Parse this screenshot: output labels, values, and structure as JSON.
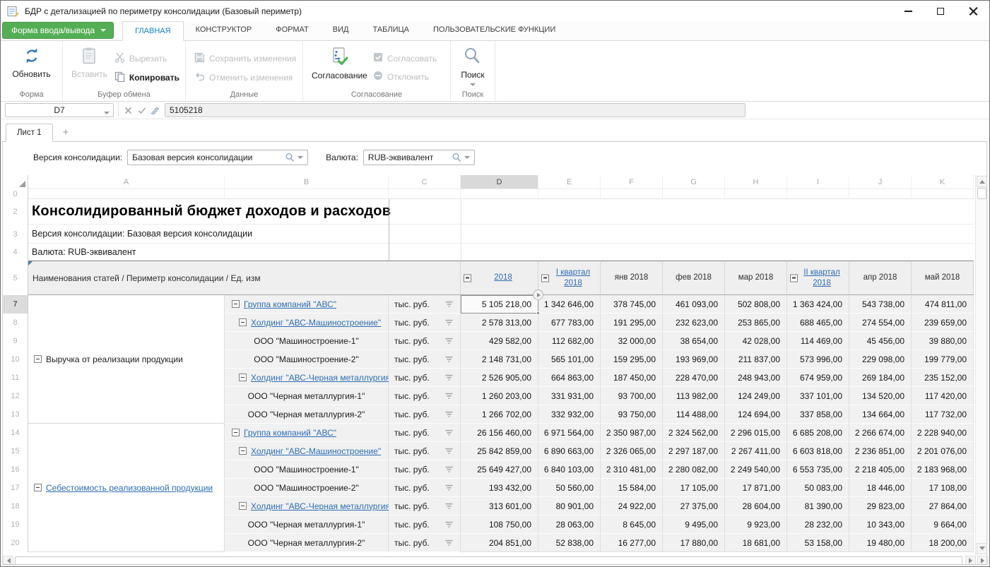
{
  "window": {
    "title": "БДР с детализацией по периметру консолидации (Базовый периметр)"
  },
  "colors": {
    "accent_green": "#54ae54",
    "active_tab_blue": "#1080c8",
    "link_blue": "#2e6db4",
    "selection_gray": "#8f8f8f",
    "cell_bg": "#f1f1f1"
  },
  "menu": {
    "form_button": "Форма ввода/вывода",
    "tabs": [
      {
        "label": "ГЛАВНАЯ",
        "active": true
      },
      {
        "label": "КОНСТРУКТОР",
        "active": false
      },
      {
        "label": "ФОРМАТ",
        "active": false
      },
      {
        "label": "ВИД",
        "active": false
      },
      {
        "label": "ТАБЛИЦА",
        "active": false
      },
      {
        "label": "ПОЛЬЗОВАТЕЛЬСКИЕ ФУНКЦИИ",
        "active": false
      }
    ]
  },
  "ribbon": {
    "groups": [
      {
        "label": "Форма",
        "buttons": [
          {
            "label": "Обновить",
            "enabled": true
          }
        ]
      },
      {
        "label": "Буфер обмена",
        "buttons": [
          {
            "label": "Вставить",
            "enabled": false
          },
          {
            "label": "Вырезать",
            "enabled": false
          },
          {
            "label": "Копировать",
            "enabled": true
          }
        ]
      },
      {
        "label": "Данные",
        "buttons": [
          {
            "label": "Сохранить изменения",
            "enabled": false
          },
          {
            "label": "Отменить изменения",
            "enabled": false
          }
        ]
      },
      {
        "label": "Согласование",
        "buttons": [
          {
            "label": "Согласование",
            "enabled": true
          },
          {
            "label": "Согласовать",
            "enabled": false
          },
          {
            "label": "Отклонить",
            "enabled": false
          }
        ]
      },
      {
        "label": "Поиск",
        "buttons": [
          {
            "label": "Поиск",
            "enabled": true
          }
        ]
      }
    ]
  },
  "formula_bar": {
    "cell_ref": "D7",
    "value": "5105218"
  },
  "sheet_bar": {
    "tab": "Лист 1",
    "add": "+"
  },
  "filters": {
    "consolidation_label": "Версия консолидации:",
    "consolidation_value": "Базовая версия консолидации",
    "currency_label": "Валюта:",
    "currency_value": "RUB-эквивалент"
  },
  "grid": {
    "column_letters": [
      "A",
      "B",
      "C",
      "D",
      "E",
      "F",
      "G",
      "H",
      "I",
      "J",
      "K"
    ],
    "selected_column": "D",
    "selected_row": "7",
    "pre_rows": [
      {
        "num": "0",
        "text": "",
        "style": "empty"
      },
      {
        "num": "2",
        "text": "Консолидированный бюджет доходов и расходов",
        "style": "title"
      },
      {
        "num": "3",
        "text": "Версия консолидации: Базовая версия консолидации",
        "style": "meta"
      },
      {
        "num": "4",
        "text": "Валюта: RUB-эквивалент",
        "style": "meta"
      }
    ],
    "header_row": {
      "num": "5",
      "stub": "Наименования статей / Периметр консолидации / Ед. изм",
      "columns": [
        {
          "label": "2018",
          "link": true,
          "collapsible": true
        },
        {
          "label": "I квартал 2018",
          "link": true,
          "collapsible": true
        },
        {
          "label": "янв 2018",
          "link": false,
          "collapsible": false
        },
        {
          "label": "фев 2018",
          "link": false,
          "collapsible": false
        },
        {
          "label": "мар 2018",
          "link": false,
          "collapsible": false
        },
        {
          "label": "II квартал 2018",
          "link": true,
          "collapsible": true
        },
        {
          "label": "апр 2018",
          "link": false,
          "collapsible": false
        },
        {
          "label": "май 2018",
          "link": false,
          "collapsible": false
        }
      ]
    },
    "sections": [
      {
        "label": "Выручка от реализации продукции",
        "link": false,
        "rows": [
          {
            "num": "7",
            "entity": "Группа компаний \"АВС\"",
            "level": 0,
            "link": true,
            "collapsible": true,
            "unit": "тыс. руб.",
            "values": [
              "5 105 218,00",
              "1 342 646,00",
              "378 745,00",
              "461 093,00",
              "502 808,00",
              "1 363 424,00",
              "543 738,00",
              "474 811,00"
            ]
          },
          {
            "num": "8",
            "entity": "Холдинг \"АВС-Машиностроение\"",
            "level": 1,
            "link": true,
            "collapsible": true,
            "unit": "тыс. руб.",
            "values": [
              "2 578 313,00",
              "677 783,00",
              "191 295,00",
              "232 623,00",
              "253 865,00",
              "688 465,00",
              "274 554,00",
              "239 659,00"
            ]
          },
          {
            "num": "9",
            "entity": "ООО \"Машиностроение-1\"",
            "level": 2,
            "link": false,
            "collapsible": false,
            "unit": "тыс. руб.",
            "values": [
              "429 582,00",
              "112 682,00",
              "32 000,00",
              "38 654,00",
              "42 028,00",
              "114 469,00",
              "45 456,00",
              "39 880,00"
            ]
          },
          {
            "num": "10",
            "entity": "ООО \"Машиностроение-2\"",
            "level": 2,
            "link": false,
            "collapsible": false,
            "unit": "тыс. руб.",
            "values": [
              "2 148 731,00",
              "565 101,00",
              "159 295,00",
              "193 969,00",
              "211 837,00",
              "573 996,00",
              "229 098,00",
              "199 779,00"
            ]
          },
          {
            "num": "11",
            "entity": "Холдинг \"АВС-Черная металлургия\"",
            "level": 1,
            "link": true,
            "collapsible": true,
            "unit": "тыс. руб.",
            "values": [
              "2 526 905,00",
              "664 863,00",
              "187 450,00",
              "228 470,00",
              "248 943,00",
              "674 959,00",
              "269 184,00",
              "235 152,00"
            ]
          },
          {
            "num": "12",
            "entity": "ООО \"Черная металлургия-1\"",
            "level": 2,
            "link": false,
            "collapsible": false,
            "unit": "тыс. руб.",
            "values": [
              "1 260 203,00",
              "331 931,00",
              "93 700,00",
              "113 982,00",
              "124 249,00",
              "337 101,00",
              "134 520,00",
              "117 420,00"
            ]
          },
          {
            "num": "13",
            "entity": "ООО \"Черная металлургия-2\"",
            "level": 2,
            "link": false,
            "collapsible": false,
            "unit": "тыс. руб.",
            "values": [
              "1 266 702,00",
              "332 932,00",
              "93 750,00",
              "114 488,00",
              "124 694,00",
              "337 858,00",
              "134 664,00",
              "117 732,00"
            ]
          }
        ]
      },
      {
        "label": "Себестоимость реализованной продукции",
        "link": true,
        "rows": [
          {
            "num": "14",
            "entity": "Группа компаний \"АВС\"",
            "level": 0,
            "link": true,
            "collapsible": true,
            "unit": "тыс. руб.",
            "values": [
              "26 156 460,00",
              "6 971 564,00",
              "2 350 987,00",
              "2 324 562,00",
              "2 296 015,00",
              "6 685 208,00",
              "2 266 674,00",
              "2 228 940,00"
            ]
          },
          {
            "num": "15",
            "entity": "Холдинг \"АВС-Машиностроение\"",
            "level": 1,
            "link": true,
            "collapsible": true,
            "unit": "тыс. руб.",
            "values": [
              "25 842 859,00",
              "6 890 663,00",
              "2 326 065,00",
              "2 297 187,00",
              "2 267 411,00",
              "6 603 818,00",
              "2 236 851,00",
              "2 201 076,00"
            ]
          },
          {
            "num": "16",
            "entity": "ООО \"Машиностроение-1\"",
            "level": 2,
            "link": false,
            "collapsible": false,
            "unit": "тыс. руб.",
            "values": [
              "25 649 427,00",
              "6 840 103,00",
              "2 310 481,00",
              "2 280 082,00",
              "2 249 540,00",
              "6 553 735,00",
              "2 218 405,00",
              "2 183 968,00"
            ]
          },
          {
            "num": "17",
            "entity": "ООО \"Машиностроение-2\"",
            "level": 2,
            "link": false,
            "collapsible": false,
            "unit": "тыс. руб.",
            "values": [
              "193 432,00",
              "50 560,00",
              "15 584,00",
              "17 105,00",
              "17 871,00",
              "50 083,00",
              "18 446,00",
              "17 108,00"
            ]
          },
          {
            "num": "18",
            "entity": "Холдинг \"АВС-Черная металлургия\"",
            "level": 1,
            "link": true,
            "collapsible": true,
            "unit": "тыс. руб.",
            "values": [
              "313 601,00",
              "80 901,00",
              "24 922,00",
              "27 375,00",
              "28 604,00",
              "81 390,00",
              "29 823,00",
              "27 864,00"
            ]
          },
          {
            "num": "19",
            "entity": "ООО \"Черная металлургия-1\"",
            "level": 2,
            "link": false,
            "collapsible": false,
            "unit": "тыс. руб.",
            "values": [
              "108 750,00",
              "28 063,00",
              "8 645,00",
              "9 495,00",
              "9 923,00",
              "28 232,00",
              "10 343,00",
              "9 664,00"
            ]
          },
          {
            "num": "20",
            "entity": "ООО \"Черная металлургия-2\"",
            "level": 2,
            "link": false,
            "collapsible": false,
            "unit": "тыс. руб.",
            "values": [
              "204 851,00",
              "52 838,00",
              "16 277,00",
              "17 880,00",
              "18 681,00",
              "53 158,00",
              "19 480,00",
              "18 200,00"
            ]
          }
        ]
      }
    ]
  }
}
